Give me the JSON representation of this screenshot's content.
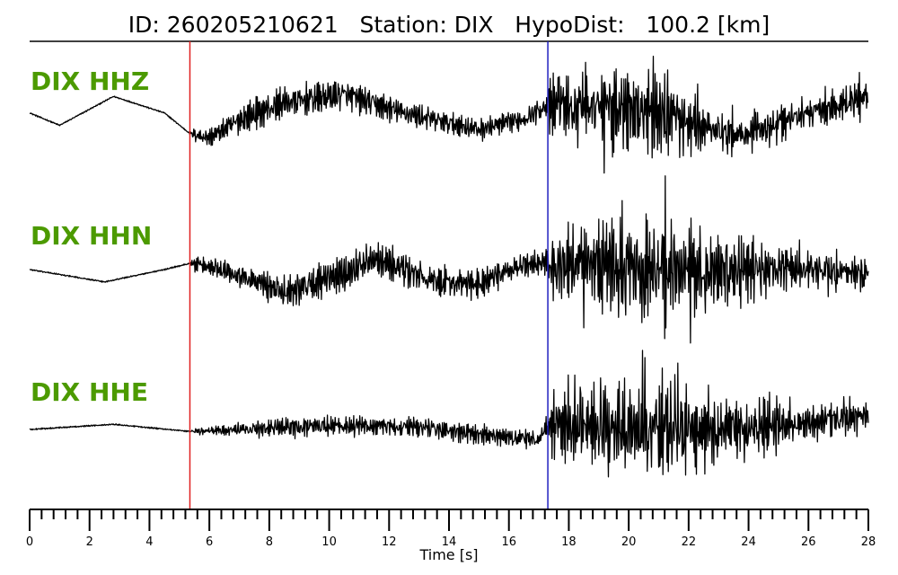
{
  "chart_data": {
    "type": "line",
    "title": "ID: 260205210621   Station: DIX   HypoDist:   100.2 [km]",
    "xlabel": "Time [s]",
    "ylabel": "",
    "xlim": [
      0,
      28
    ],
    "x_ticks": [
      "0",
      "2",
      "4",
      "6",
      "8",
      "10",
      "12",
      "14",
      "16",
      "18",
      "20",
      "22",
      "24",
      "26",
      "28"
    ],
    "minor_tick_step": 0.4,
    "grid": false,
    "label_color": "#4c9a00",
    "p_pick": {
      "time": 5.35,
      "color": "#e02020"
    },
    "s_pick": {
      "time": 17.3,
      "color": "#2020c0"
    },
    "series": [
      {
        "name": "DIX HHZ",
        "envelope": [
          [
            0,
            0.01
          ],
          [
            5.35,
            0.01
          ],
          [
            5.5,
            0.1
          ],
          [
            7,
            0.2
          ],
          [
            9,
            0.24
          ],
          [
            12,
            0.2
          ],
          [
            15,
            0.16
          ],
          [
            17.2,
            0.16
          ],
          [
            17.4,
            0.42
          ],
          [
            19,
            0.52
          ],
          [
            20.2,
            0.6
          ],
          [
            21.5,
            0.48
          ],
          [
            23,
            0.32
          ],
          [
            25,
            0.24
          ],
          [
            28,
            0.22
          ]
        ],
        "trend": [
          [
            0,
            0.02
          ],
          [
            1,
            -0.1
          ],
          [
            2.8,
            0.18
          ],
          [
            4.5,
            0.02
          ],
          [
            5.35,
            -0.18
          ],
          [
            6,
            -0.22
          ],
          [
            7,
            -0.05
          ],
          [
            8.5,
            0.12
          ],
          [
            10.5,
            0.2
          ],
          [
            12.5,
            0.02
          ],
          [
            15,
            -0.14
          ],
          [
            16.5,
            -0.04
          ],
          [
            17.3,
            0.1
          ],
          [
            19,
            0.1
          ],
          [
            21,
            0.02
          ],
          [
            22.5,
            -0.12
          ],
          [
            24,
            -0.18
          ],
          [
            26,
            0.02
          ],
          [
            28,
            0.18
          ]
        ]
      },
      {
        "name": "DIX HHN",
        "envelope": [
          [
            0,
            0.01
          ],
          [
            5.35,
            0.01
          ],
          [
            5.5,
            0.1
          ],
          [
            7,
            0.18
          ],
          [
            9,
            0.26
          ],
          [
            12,
            0.24
          ],
          [
            15,
            0.2
          ],
          [
            17.2,
            0.16
          ],
          [
            17.4,
            0.5
          ],
          [
            19,
            0.62
          ],
          [
            20.5,
            0.7
          ],
          [
            22,
            0.62
          ],
          [
            24,
            0.42
          ],
          [
            26,
            0.25
          ],
          [
            28,
            0.22
          ]
        ],
        "trend": [
          [
            0,
            0.0
          ],
          [
            2.5,
            -0.12
          ],
          [
            4.5,
            0.0
          ],
          [
            5.35,
            0.06
          ],
          [
            6.5,
            0.0
          ],
          [
            8.5,
            -0.22
          ],
          [
            10.5,
            -0.04
          ],
          [
            11.5,
            0.12
          ],
          [
            13.5,
            -0.12
          ],
          [
            15,
            -0.14
          ],
          [
            16.5,
            0.05
          ],
          [
            17.3,
            0.06
          ],
          [
            20,
            0.0
          ],
          [
            23,
            0.0
          ],
          [
            26,
            0.0
          ],
          [
            28,
            -0.05
          ]
        ]
      },
      {
        "name": "DIX HHE",
        "envelope": [
          [
            0,
            0.01
          ],
          [
            5.35,
            0.01
          ],
          [
            5.5,
            0.04
          ],
          [
            7,
            0.1
          ],
          [
            9,
            0.16
          ],
          [
            12,
            0.14
          ],
          [
            15,
            0.14
          ],
          [
            17.2,
            0.12
          ],
          [
            17.4,
            0.48
          ],
          [
            19,
            0.62
          ],
          [
            20.5,
            0.74
          ],
          [
            22,
            0.55
          ],
          [
            24,
            0.35
          ],
          [
            26,
            0.24
          ],
          [
            28,
            0.2
          ]
        ],
        "trend": [
          [
            0,
            0.0
          ],
          [
            2.8,
            0.05
          ],
          [
            5.35,
            -0.02
          ],
          [
            7,
            0.0
          ],
          [
            10,
            0.04
          ],
          [
            13,
            0.02
          ],
          [
            15,
            -0.05
          ],
          [
            17,
            -0.1
          ],
          [
            17.3,
            0.05
          ],
          [
            20,
            0.02
          ],
          [
            23,
            0.0
          ],
          [
            26,
            0.06
          ],
          [
            28,
            0.14
          ]
        ]
      }
    ]
  }
}
